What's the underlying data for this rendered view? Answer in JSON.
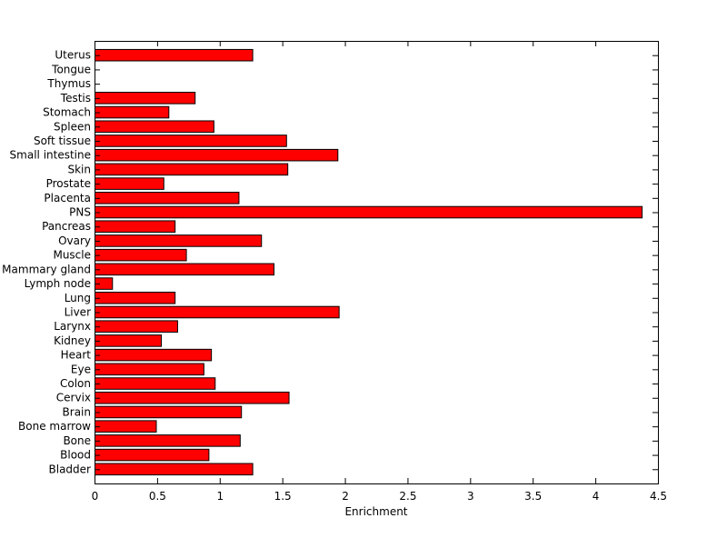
{
  "chart_data": {
    "type": "bar",
    "orientation": "horizontal",
    "xlabel": "Enrichment",
    "ylabel": "",
    "xlim": [
      0,
      4.5
    ],
    "xticks": [
      0,
      0.5,
      1,
      1.5,
      2,
      2.5,
      3,
      3.5,
      4,
      4.5
    ],
    "xtick_labels": [
      "0",
      "0.5",
      "1",
      "1.5",
      "2",
      "2.5",
      "3",
      "3.5",
      "4",
      "4.5"
    ],
    "grid": false,
    "legend": "none",
    "bar_color": "#ff0000",
    "bar_edge_color": "#000000",
    "categories": [
      "Bladder",
      "Blood",
      "Bone",
      "Bone marrow",
      "Brain",
      "Cervix",
      "Colon",
      "Eye",
      "Heart",
      "Kidney",
      "Larynx",
      "Liver",
      "Lung",
      "Lymph node",
      "Mammary gland",
      "Muscle",
      "Ovary",
      "Pancreas",
      "PNS",
      "Placenta",
      "Prostate",
      "Skin",
      "Small intestine",
      "Soft tissue",
      "Spleen",
      "Stomach",
      "Testis",
      "Thymus",
      "Tongue",
      "Uterus"
    ],
    "values": [
      1.26,
      0.91,
      1.16,
      0.49,
      1.17,
      1.55,
      0.96,
      0.87,
      0.93,
      0.53,
      0.66,
      1.95,
      0.64,
      0.14,
      1.43,
      0.73,
      1.33,
      0.64,
      4.37,
      1.15,
      0.55,
      1.54,
      1.94,
      1.53,
      0.95,
      0.59,
      0.8,
      0,
      0,
      1.26
    ]
  }
}
